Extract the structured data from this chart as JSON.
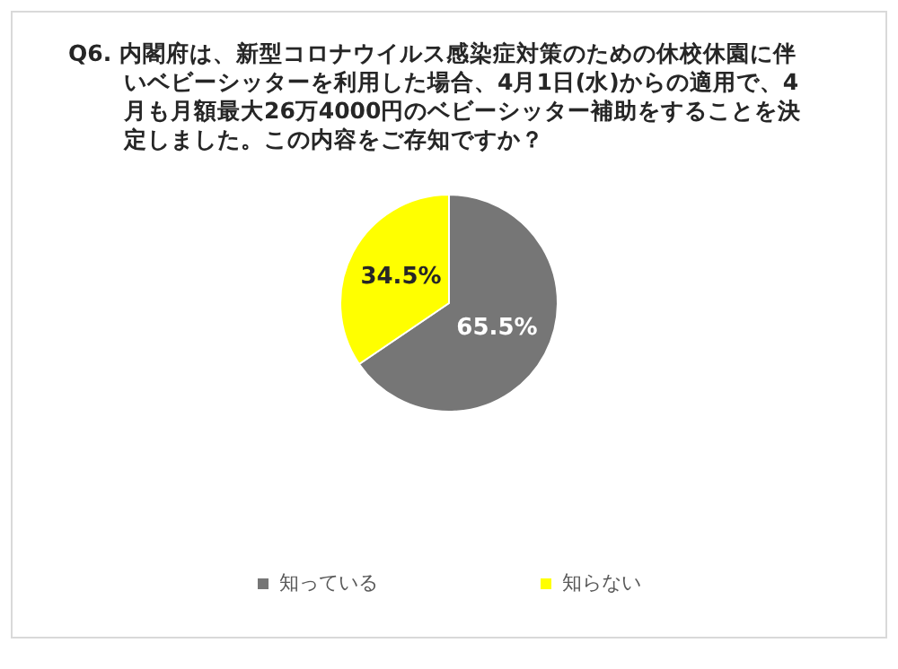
{
  "chart_data": {
    "type": "pie",
    "title": "Q6. 内閣府は、新型コロナウイルス感染症対策のための休校休園に伴いベビーシッターを利用した場合、4月1日(水)からの適用で、4月も月額最大26万4000円のベビーシッター補助をすることを決定しました。この内容をご存知ですか？",
    "categories": [
      "知っている",
      "知らない"
    ],
    "values": [
      65.5,
      34.5
    ],
    "colors": [
      "#767676",
      "#ffff00"
    ],
    "value_labels": [
      "65.5%",
      "34.5%"
    ],
    "legend": "bottom"
  }
}
